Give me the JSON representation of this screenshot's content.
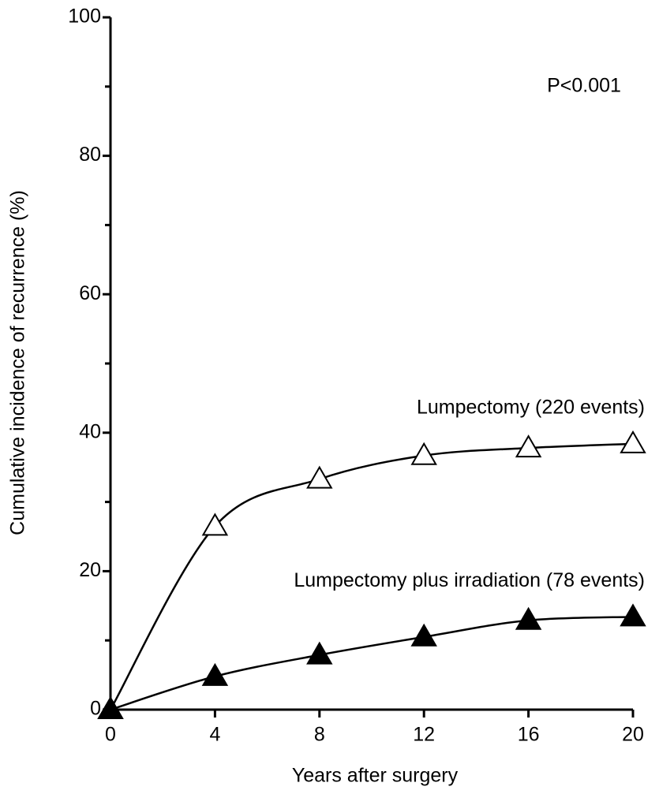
{
  "chart_data": {
    "type": "line",
    "x_label": "Years after surgery",
    "y_label": "Cumulative incidence of recurrence (%)",
    "annotations": [
      "P<0.001"
    ],
    "x": [
      0,
      4,
      8,
      12,
      16,
      20
    ],
    "series": [
      {
        "name": "Lumpectomy (220 events)",
        "color": "#000000",
        "marker": "open-triangle",
        "values": [
          0,
          26.5,
          33.3,
          36.7,
          37.8,
          38.4
        ]
      },
      {
        "name": "Lumpectomy plus irradiation (78 events)",
        "color": "#000000",
        "marker": "filled-triangle",
        "values": [
          0,
          4.8,
          7.9,
          10.5,
          12.9,
          13.4
        ]
      }
    ],
    "xlim": [
      0,
      20
    ],
    "xticks": [
      0,
      4,
      8,
      12,
      16,
      20
    ],
    "ylim": [
      0,
      100
    ],
    "yticks": [
      0,
      20,
      40,
      60,
      80,
      100
    ],
    "yminor_ticks": [
      10,
      30,
      50,
      70,
      90
    ],
    "grid": false
  }
}
